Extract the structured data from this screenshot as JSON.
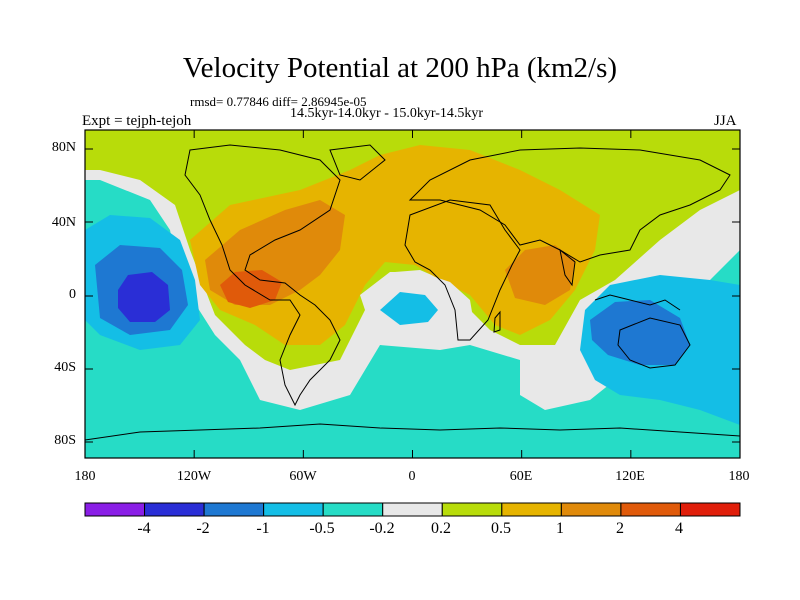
{
  "title": "Velocity Potential at 200 hPa (km2/s)",
  "stats_line": "rmsd= 0.77846  diff= 2.86945e-05",
  "subtitle": "14.5kyr-14.0kyr - 15.0kyr-14.5kyr",
  "left_label": "Expt = tejph-tejoh",
  "right_label": "JJA",
  "axes": {
    "lat_ticks": [
      "80N",
      "40N",
      "0",
      "40S",
      "80S"
    ],
    "lon_ticks": [
      "180",
      "120W",
      "60W",
      "0",
      "60E",
      "120E",
      "180"
    ]
  },
  "colorbar": {
    "labels": [
      "-4",
      "-2",
      "-1",
      "-0.5",
      "-0.2",
      "0.2",
      "0.5",
      "1",
      "2",
      "4"
    ],
    "colors": [
      "#8a1ee6",
      "#2a2ed6",
      "#1e78d2",
      "#14bee6",
      "#26dcc6",
      "#e8e8e8",
      "#b8dc0a",
      "#e6b400",
      "#e08a0a",
      "#e05a0a",
      "#e01e0a"
    ]
  },
  "colors": {
    "ocean_neg": "#26dcc6",
    "neutral": "#e8e8e8",
    "light_pos": "#b8dc0a",
    "mid_pos": "#e6b400",
    "strong_pos": "#e08a0a",
    "peak_pos": "#e05a0a",
    "light_neg": "#14bee6",
    "mid_neg": "#1e78d2",
    "strong_neg": "#2a2ed6"
  }
}
